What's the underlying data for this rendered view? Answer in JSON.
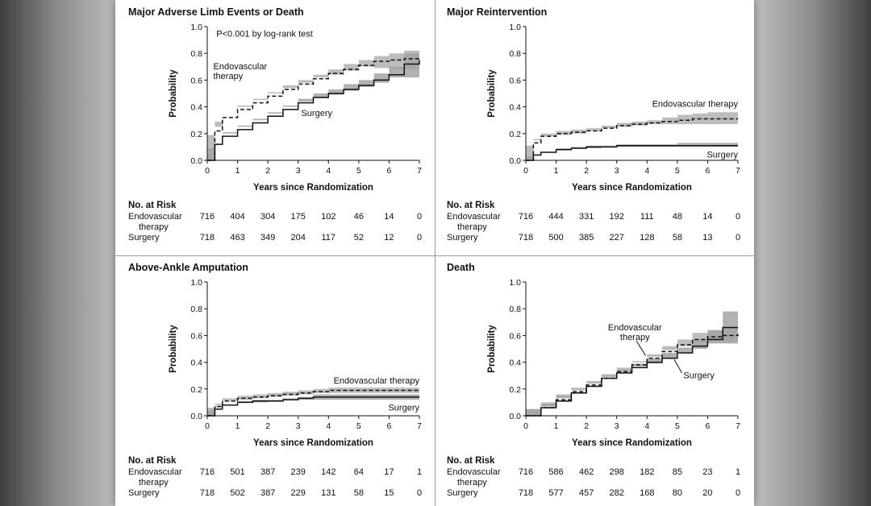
{
  "chart_data": [
    {
      "type": "line",
      "title": "Major Adverse Limb Events or Death",
      "xlabel": "Years since Randomization",
      "ylabel": "Probability",
      "xlim": [
        0,
        7
      ],
      "ylim": [
        0,
        1
      ],
      "x_ticks": [
        "0",
        "1",
        "2",
        "3",
        "4",
        "5",
        "6",
        "7"
      ],
      "y_ticks": [
        "0.0",
        "0.2",
        "0.4",
        "0.6",
        "0.8",
        "1.0"
      ],
      "annotation": "P<0.001 by log-rank test",
      "series": [
        {
          "name": "Endovascular therapy",
          "label": "Endovascular\ntherapy",
          "style": "dashed",
          "x": [
            0,
            0.25,
            0.5,
            1,
            1.5,
            2,
            2.5,
            3,
            3.5,
            4,
            4.5,
            5,
            5.5,
            6,
            6.5,
            7
          ],
          "y": [
            0,
            0.22,
            0.32,
            0.38,
            0.43,
            0.48,
            0.53,
            0.57,
            0.61,
            0.65,
            0.68,
            0.71,
            0.74,
            0.75,
            0.76,
            0.77
          ],
          "ci_lower": [
            0,
            0.19,
            0.29,
            0.35,
            0.4,
            0.45,
            0.5,
            0.54,
            0.58,
            0.62,
            0.64,
            0.67,
            0.7,
            0.69,
            0.68,
            0.68
          ],
          "ci_upper": [
            0,
            0.25,
            0.35,
            0.41,
            0.46,
            0.51,
            0.56,
            0.6,
            0.64,
            0.68,
            0.72,
            0.75,
            0.78,
            0.8,
            0.82,
            0.82
          ]
        },
        {
          "name": "Surgery",
          "label": "Surgery",
          "style": "solid",
          "x": [
            0,
            0.25,
            0.5,
            1,
            1.5,
            2,
            2.5,
            3,
            3.5,
            4,
            4.5,
            5,
            5.5,
            6,
            6.5,
            7
          ],
          "y": [
            0,
            0.12,
            0.18,
            0.23,
            0.28,
            0.33,
            0.38,
            0.43,
            0.47,
            0.5,
            0.53,
            0.56,
            0.6,
            0.64,
            0.72,
            0.75
          ],
          "ci_lower": [
            0,
            0.09,
            0.15,
            0.2,
            0.25,
            0.3,
            0.35,
            0.4,
            0.44,
            0.47,
            0.49,
            0.52,
            0.55,
            0.58,
            0.62,
            0.62
          ],
          "ci_upper": [
            0,
            0.15,
            0.21,
            0.26,
            0.31,
            0.36,
            0.41,
            0.46,
            0.5,
            0.53,
            0.57,
            0.6,
            0.65,
            0.7,
            0.8,
            0.82
          ]
        }
      ],
      "risk_table": {
        "heading": "No. at Risk",
        "rows": [
          {
            "label": "Endovascular\ntherapy",
            "values": [
              "716",
              "404",
              "304",
              "175",
              "102",
              "46",
              "14",
              "0"
            ]
          },
          {
            "label": "Surgery",
            "values": [
              "718",
              "463",
              "349",
              "204",
              "117",
              "52",
              "12",
              "0"
            ]
          }
        ]
      }
    },
    {
      "type": "line",
      "title": "Major Reintervention",
      "xlabel": "Years since Randomization",
      "ylabel": "Probability",
      "xlim": [
        0,
        7
      ],
      "ylim": [
        0,
        1
      ],
      "x_ticks": [
        "0",
        "1",
        "2",
        "3",
        "4",
        "5",
        "6",
        "7"
      ],
      "y_ticks": [
        "0.0",
        "0.2",
        "0.4",
        "0.6",
        "0.8",
        "1.0"
      ],
      "series": [
        {
          "name": "Endovascular therapy",
          "label": "Endovascular therapy",
          "style": "dashed",
          "x": [
            0,
            0.25,
            0.5,
            1,
            1.5,
            2,
            2.5,
            3,
            3.5,
            4,
            4.5,
            5,
            5.5,
            6,
            6.5,
            7
          ],
          "y": [
            0,
            0.13,
            0.18,
            0.2,
            0.21,
            0.22,
            0.24,
            0.26,
            0.27,
            0.28,
            0.29,
            0.3,
            0.31,
            0.31,
            0.31,
            0.31
          ],
          "ci_lower": [
            0,
            0.11,
            0.16,
            0.18,
            0.19,
            0.2,
            0.22,
            0.24,
            0.25,
            0.26,
            0.27,
            0.27,
            0.27,
            0.27,
            0.27,
            0.27
          ],
          "ci_upper": [
            0,
            0.15,
            0.2,
            0.22,
            0.23,
            0.24,
            0.26,
            0.28,
            0.29,
            0.3,
            0.32,
            0.34,
            0.35,
            0.36,
            0.36,
            0.36
          ]
        },
        {
          "name": "Surgery",
          "label": "Surgery",
          "style": "solid",
          "x": [
            0,
            0.25,
            0.5,
            1,
            1.5,
            2,
            2.5,
            3,
            3.5,
            4,
            4.5,
            5,
            5.5,
            6,
            6.5,
            7
          ],
          "y": [
            0,
            0.04,
            0.06,
            0.08,
            0.09,
            0.1,
            0.1,
            0.11,
            0.11,
            0.11,
            0.11,
            0.11,
            0.11,
            0.11,
            0.11,
            0.11
          ],
          "ci_lower": [
            0,
            0.03,
            0.05,
            0.07,
            0.08,
            0.09,
            0.09,
            0.1,
            0.1,
            0.1,
            0.1,
            0.1,
            0.1,
            0.1,
            0.1,
            0.1
          ],
          "ci_upper": [
            0,
            0.05,
            0.07,
            0.09,
            0.1,
            0.11,
            0.11,
            0.12,
            0.12,
            0.12,
            0.12,
            0.13,
            0.13,
            0.13,
            0.13,
            0.13
          ]
        }
      ],
      "risk_table": {
        "heading": "No. at Risk",
        "rows": [
          {
            "label": "Endovascular\ntherapy",
            "values": [
              "716",
              "444",
              "331",
              "192",
              "111",
              "48",
              "14",
              "0"
            ]
          },
          {
            "label": "Surgery",
            "values": [
              "718",
              "500",
              "385",
              "227",
              "128",
              "58",
              "13",
              "0"
            ]
          }
        ]
      }
    },
    {
      "type": "line",
      "title": "Above-Ankle Amputation",
      "xlabel": "Years since Randomization",
      "ylabel": "Probability",
      "xlim": [
        0,
        7
      ],
      "ylim": [
        0,
        1
      ],
      "x_ticks": [
        "0",
        "1",
        "2",
        "3",
        "4",
        "5",
        "6",
        "7"
      ],
      "y_ticks": [
        "0.0",
        "0.2",
        "0.4",
        "0.6",
        "0.8",
        "1.0"
      ],
      "series": [
        {
          "name": "Endovascular therapy",
          "label": "Endovascular therapy",
          "style": "dashed",
          "x": [
            0,
            0.25,
            0.5,
            1,
            1.5,
            2,
            2.5,
            3,
            3.5,
            4,
            4.5,
            5,
            5.5,
            6,
            6.5,
            7
          ],
          "y": [
            0,
            0.07,
            0.11,
            0.13,
            0.14,
            0.15,
            0.16,
            0.17,
            0.18,
            0.19,
            0.19,
            0.19,
            0.19,
            0.19,
            0.19,
            0.19
          ],
          "ci_lower": [
            0,
            0.06,
            0.09,
            0.11,
            0.12,
            0.13,
            0.14,
            0.15,
            0.16,
            0.17,
            0.17,
            0.17,
            0.17,
            0.17,
            0.17,
            0.17
          ],
          "ci_upper": [
            0,
            0.08,
            0.13,
            0.15,
            0.16,
            0.17,
            0.18,
            0.19,
            0.2,
            0.21,
            0.21,
            0.21,
            0.21,
            0.21,
            0.21,
            0.21
          ]
        },
        {
          "name": "Surgery",
          "label": "Surgery",
          "style": "solid",
          "x": [
            0,
            0.25,
            0.5,
            1,
            1.5,
            2,
            2.5,
            3,
            3.5,
            4,
            4.5,
            5,
            5.5,
            6,
            6.5,
            7
          ],
          "y": [
            0,
            0.05,
            0.08,
            0.1,
            0.11,
            0.11,
            0.12,
            0.13,
            0.14,
            0.14,
            0.14,
            0.14,
            0.14,
            0.14,
            0.14,
            0.14
          ],
          "ci_lower": [
            0,
            0.04,
            0.07,
            0.09,
            0.1,
            0.1,
            0.11,
            0.12,
            0.12,
            0.12,
            0.12,
            0.12,
            0.12,
            0.12,
            0.12,
            0.12
          ],
          "ci_upper": [
            0,
            0.06,
            0.09,
            0.11,
            0.12,
            0.12,
            0.13,
            0.14,
            0.16,
            0.16,
            0.16,
            0.16,
            0.16,
            0.16,
            0.16,
            0.16
          ]
        }
      ],
      "risk_table": {
        "heading": "No. at Risk",
        "rows": [
          {
            "label": "Endovascular\ntherapy",
            "values": [
              "716",
              "501",
              "387",
              "239",
              "142",
              "64",
              "17",
              "1"
            ]
          },
          {
            "label": "Surgery",
            "values": [
              "718",
              "502",
              "387",
              "229",
              "131",
              "58",
              "15",
              "0"
            ]
          }
        ]
      }
    },
    {
      "type": "line",
      "title": "Death",
      "xlabel": "Years since Randomization",
      "ylabel": "Probability",
      "xlim": [
        0,
        7
      ],
      "ylim": [
        0,
        1
      ],
      "x_ticks": [
        "0",
        "1",
        "2",
        "3",
        "4",
        "5",
        "6",
        "7"
      ],
      "y_ticks": [
        "0.0",
        "0.2",
        "0.4",
        "0.6",
        "0.8",
        "1.0"
      ],
      "series": [
        {
          "name": "Endovascular therapy",
          "label": "Endovascular\ntherapy",
          "style": "dashed",
          "x": [
            0,
            0.5,
            1,
            1.5,
            2,
            2.5,
            3,
            3.5,
            4,
            4.5,
            5,
            5.5,
            6,
            6.5,
            7
          ],
          "y": [
            0,
            0.06,
            0.12,
            0.18,
            0.23,
            0.28,
            0.33,
            0.38,
            0.43,
            0.48,
            0.53,
            0.57,
            0.59,
            0.6,
            0.61
          ],
          "ci_lower": [
            0,
            0.05,
            0.1,
            0.16,
            0.21,
            0.26,
            0.3,
            0.35,
            0.4,
            0.44,
            0.49,
            0.52,
            0.54,
            0.55,
            0.55
          ],
          "ci_upper": [
            0,
            0.07,
            0.14,
            0.2,
            0.25,
            0.3,
            0.36,
            0.41,
            0.46,
            0.52,
            0.57,
            0.62,
            0.64,
            0.66,
            0.67
          ]
        },
        {
          "name": "Surgery",
          "label": "Surgery",
          "style": "solid",
          "x": [
            0,
            0.5,
            1,
            1.5,
            2,
            2.5,
            3,
            3.5,
            4,
            4.5,
            5,
            5.5,
            6,
            6.5,
            7
          ],
          "y": [
            0,
            0.06,
            0.11,
            0.17,
            0.22,
            0.28,
            0.32,
            0.36,
            0.4,
            0.43,
            0.47,
            0.52,
            0.57,
            0.66,
            0.66
          ],
          "ci_lower": [
            0,
            0.05,
            0.09,
            0.15,
            0.2,
            0.25,
            0.29,
            0.33,
            0.37,
            0.39,
            0.43,
            0.47,
            0.5,
            0.54,
            0.54
          ],
          "ci_upper": [
            0,
            0.07,
            0.13,
            0.19,
            0.24,
            0.31,
            0.35,
            0.39,
            0.43,
            0.47,
            0.51,
            0.57,
            0.64,
            0.78,
            0.78
          ]
        }
      ],
      "risk_table": {
        "heading": "No. at Risk",
        "rows": [
          {
            "label": "Endovascular\ntherapy",
            "values": [
              "716",
              "586",
              "462",
              "298",
              "182",
              "85",
              "23",
              "1"
            ]
          },
          {
            "label": "Surgery",
            "values": [
              "718",
              "577",
              "457",
              "282",
              "168",
              "80",
              "20",
              "0"
            ]
          }
        ]
      }
    }
  ]
}
